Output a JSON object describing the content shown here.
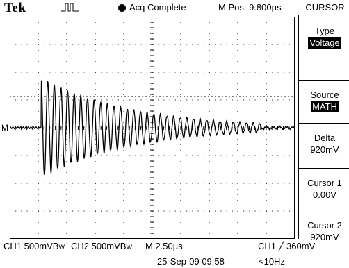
{
  "header": {
    "brand": "Tek",
    "status": "Acq Complete",
    "position": "M Pos: 9.800µs"
  },
  "menu": {
    "title": "CURSOR",
    "items": [
      {
        "label": "Type",
        "value": "Voltage",
        "highlight": true
      },
      {
        "label": "Source",
        "value": "MATH",
        "highlight": true
      },
      {
        "label": "Delta",
        "value": "920mV",
        "highlight": false
      },
      {
        "label": "Cursor 1",
        "value": "0.00V",
        "highlight": false
      },
      {
        "label": "Cursor 2",
        "value": "920mV",
        "highlight": false
      }
    ]
  },
  "screen": {
    "ch1_marker": "M",
    "waveform": {
      "trigger_division": 1.1,
      "pre_trigger_level": 0,
      "peak_amplitude_divisions": 1.8,
      "cycles_per_division": 4.3,
      "decay_per_division": 0.32,
      "ringing_until_division": 8.8
    }
  },
  "footer": {
    "ch1_scale": "CH1  500mVB",
    "ch1_bw": "W",
    "ch2_scale": "CH2  500mVB",
    "ch2_bw": "W",
    "timebase": "M 2.50µs",
    "trigger": "CH1 ╱  360mV",
    "datetime": "25-Sep-09 09:58",
    "frequency": "<10Hz"
  }
}
